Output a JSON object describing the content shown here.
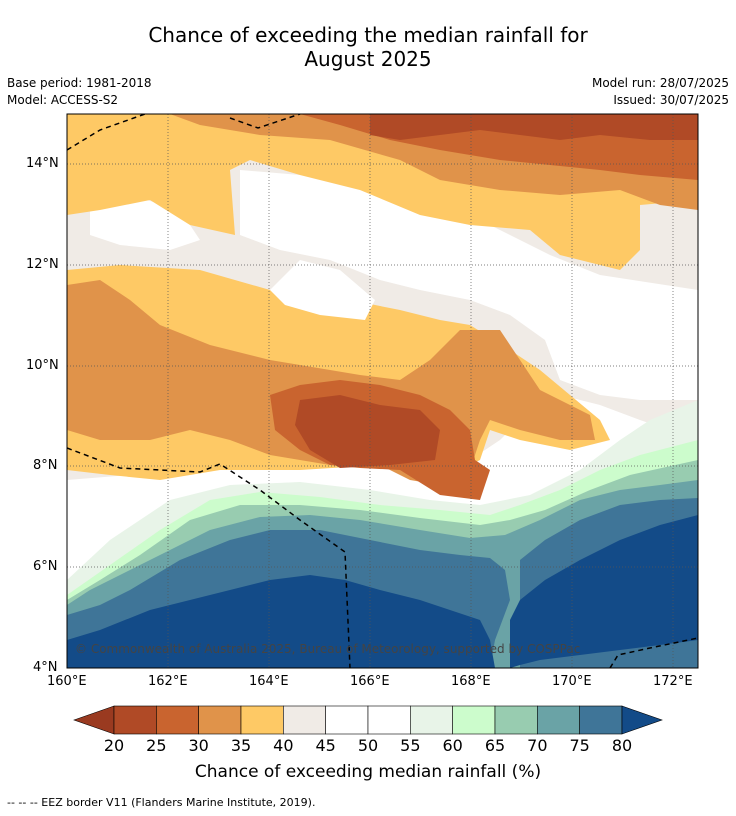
{
  "header": {
    "title_line1": "Chance of exceeding the median rainfall for",
    "title_line2": "August 2025",
    "base_period": "Base period: 1981-2018",
    "model": "Model: ACCESS-S2",
    "model_run": "Model run: 28/07/2025",
    "issued": "Issued: 30/07/2025"
  },
  "map": {
    "x_ticks": [
      "160°E",
      "162°E",
      "164°E",
      "166°E",
      "168°E",
      "170°E",
      "172°E"
    ],
    "y_ticks": [
      "14°N",
      "12°N",
      "10°N",
      "8°N",
      "6°N",
      "4°N"
    ],
    "copyright": "© Commonwealth of Australia 2025, Bureau of Meteorology, supported by COSPPac",
    "colors": {
      "band_20_25": "#b04a26",
      "band_25_30": "#c9642f",
      "band_30_35": "#e0934a",
      "band_35_40": "#fec965",
      "band_40_45": "#f0ebe6",
      "band_45_55": "#ffffff",
      "band_55_60": "#e8f4e8",
      "band_60_65": "#ccfccc",
      "band_65_70": "#98ccb0",
      "band_70_75": "#6aa3a6",
      "band_75_80": "#3f7598",
      "band_above_80": "#134b88"
    }
  },
  "colorbar": {
    "ticks": [
      "20",
      "25",
      "30",
      "35",
      "40",
      "45",
      "50",
      "55",
      "60",
      "65",
      "70",
      "75",
      "80"
    ],
    "colors": [
      "#b04a26",
      "#c9642f",
      "#e0934a",
      "#fec965",
      "#f0ebe6",
      "#ffffff",
      "#ffffff",
      "#e8f4e8",
      "#ccfccc",
      "#98ccb0",
      "#6aa3a6",
      "#3f7598"
    ],
    "low_color": "#9a3a20",
    "high_color": "#134b88",
    "label": "Chance of exceeding median rainfall (%)"
  },
  "footer": {
    "text": "--  --  -- EEZ border V11 (Flanders Marine Institute, 2019)."
  }
}
